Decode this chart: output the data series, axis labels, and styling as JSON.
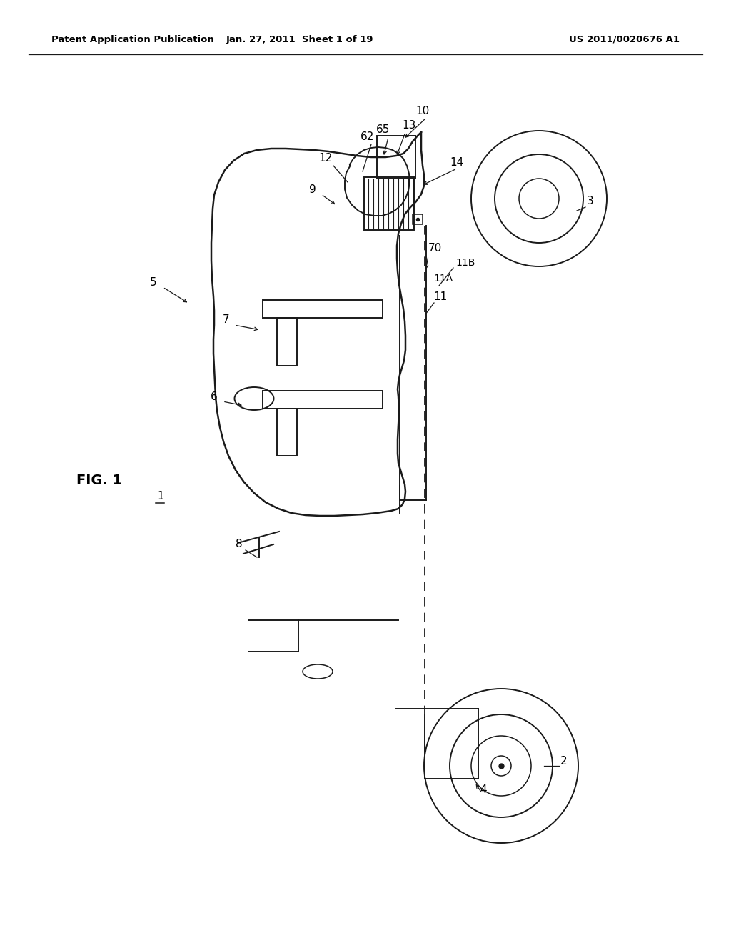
{
  "bg_color": "#ffffff",
  "line_color": "#1a1a1a",
  "header_left": "Patent Application Publication",
  "header_center": "Jan. 27, 2011  Sheet 1 of 19",
  "header_right": "US 2011/0020676 A1",
  "fig_label": "FIG. 1",
  "label_1": "1",
  "label_2": "2",
  "label_3": "3",
  "label_4": "4",
  "label_5": "5",
  "label_6": "6",
  "label_7": "7",
  "label_8": "8",
  "label_9": "9",
  "label_10": "10",
  "label_11": "11",
  "label_11A": "11A",
  "label_11B": "11B",
  "label_12": "12",
  "label_13": "13",
  "label_14": "14",
  "label_62": "62",
  "label_65": "65",
  "label_70": "70"
}
